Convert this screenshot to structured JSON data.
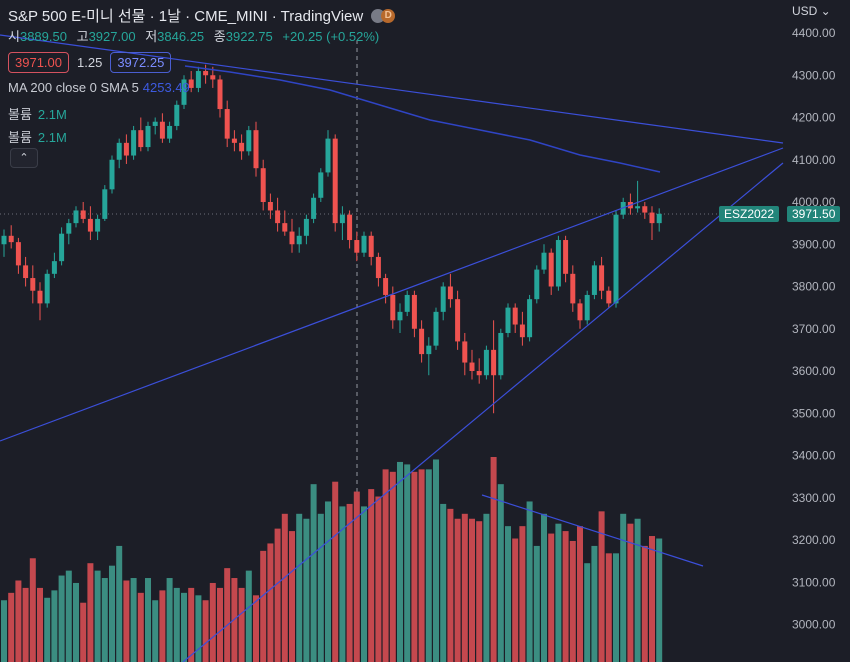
{
  "header": {
    "title": "S&P 500 E-미니 선물 · 1날 · CME_MINI · TradingView",
    "status_dot": "D",
    "ohlc": {
      "open_label": "시",
      "open": "3889.50",
      "high_label": "고",
      "high": "3927.00",
      "low_label": "저",
      "low": "3846.25",
      "close_label": "종",
      "close": "3922.75",
      "change": "+20.25 (+0.52%)"
    },
    "bid": "3971.00",
    "spread": "1.25",
    "ask": "3972.25",
    "ma_label": "MA 200 close 0 SMA 5",
    "ma_value": "4253.49",
    "volume_rows": [
      {
        "label": "볼륨",
        "value": "2.1M"
      },
      {
        "label": "볼륨",
        "value": "2.1M"
      }
    ],
    "collapse_icon": "chevron-up-icon"
  },
  "price_axis": {
    "currency": "USD",
    "symbol_tag": "ESZ2022",
    "last_price_tag": "3971.50"
  },
  "colors": {
    "background": "#1c1e27",
    "up": "#26a69a",
    "down": "#ef5350",
    "volume_up": "#3b8d81",
    "volume_down": "#c4484e",
    "trendline": "#3b4fd9",
    "ma": "#2f44c4",
    "tag": "#22857a"
  },
  "chart_data": {
    "type": "candlestick",
    "yaxis": {
      "ticks": [
        "3000.00",
        "3100.00",
        "3200.00",
        "3300.00",
        "3400.00",
        "3500.00",
        "3600.00",
        "3700.00",
        "3800.00",
        "3900.00",
        "4000.00",
        "4100.00",
        "4200.00",
        "4300.00",
        "4400.00"
      ],
      "range": [
        2920,
        4430
      ]
    },
    "last_price": 3971.5,
    "candles": [
      [
        3900,
        3935,
        3870,
        3920
      ],
      [
        3920,
        3945,
        3890,
        3905
      ],
      [
        3905,
        3915,
        3830,
        3850
      ],
      [
        3850,
        3870,
        3800,
        3820
      ],
      [
        3820,
        3850,
        3760,
        3790
      ],
      [
        3790,
        3810,
        3720,
        3760
      ],
      [
        3760,
        3840,
        3750,
        3830
      ],
      [
        3830,
        3880,
        3820,
        3860
      ],
      [
        3860,
        3940,
        3850,
        3925
      ],
      [
        3925,
        3960,
        3900,
        3950
      ],
      [
        3950,
        3990,
        3940,
        3980
      ],
      [
        3980,
        4000,
        3950,
        3960
      ],
      [
        3960,
        3990,
        3910,
        3930
      ],
      [
        3930,
        3970,
        3910,
        3960
      ],
      [
        3960,
        4040,
        3955,
        4030
      ],
      [
        4030,
        4110,
        4020,
        4100
      ],
      [
        4100,
        4150,
        4080,
        4140
      ],
      [
        4140,
        4160,
        4090,
        4110
      ],
      [
        4110,
        4180,
        4100,
        4170
      ],
      [
        4170,
        4200,
        4120,
        4130
      ],
      [
        4130,
        4190,
        4120,
        4180
      ],
      [
        4180,
        4200,
        4160,
        4190
      ],
      [
        4190,
        4210,
        4140,
        4150
      ],
      [
        4150,
        4190,
        4140,
        4180
      ],
      [
        4180,
        4240,
        4170,
        4230
      ],
      [
        4230,
        4300,
        4220,
        4290
      ],
      [
        4290,
        4310,
        4260,
        4270
      ],
      [
        4270,
        4320,
        4260,
        4310
      ],
      [
        4310,
        4325,
        4280,
        4300
      ],
      [
        4300,
        4320,
        4270,
        4290
      ],
      [
        4290,
        4300,
        4200,
        4220
      ],
      [
        4220,
        4240,
        4130,
        4150
      ],
      [
        4150,
        4170,
        4120,
        4140
      ],
      [
        4140,
        4160,
        4100,
        4120
      ],
      [
        4120,
        4180,
        4110,
        4170
      ],
      [
        4170,
        4190,
        4060,
        4080
      ],
      [
        4080,
        4100,
        3980,
        4000
      ],
      [
        4000,
        4020,
        3960,
        3980
      ],
      [
        3980,
        4010,
        3930,
        3950
      ],
      [
        3950,
        3980,
        3920,
        3930
      ],
      [
        3930,
        3960,
        3880,
        3900
      ],
      [
        3900,
        3940,
        3880,
        3920
      ],
      [
        3920,
        3970,
        3900,
        3960
      ],
      [
        3960,
        4020,
        3950,
        4010
      ],
      [
        4010,
        4080,
        4000,
        4070
      ],
      [
        4070,
        4170,
        4060,
        4150
      ],
      [
        4150,
        4160,
        3930,
        3950
      ],
      [
        3950,
        3990,
        3910,
        3970
      ],
      [
        3970,
        3980,
        3890,
        3910
      ],
      [
        3910,
        3930,
        3860,
        3880
      ],
      [
        3880,
        3930,
        3870,
        3920
      ],
      [
        3920,
        3930,
        3850,
        3870
      ],
      [
        3870,
        3880,
        3800,
        3820
      ],
      [
        3820,
        3830,
        3760,
        3780
      ],
      [
        3780,
        3800,
        3700,
        3720
      ],
      [
        3720,
        3760,
        3690,
        3740
      ],
      [
        3740,
        3790,
        3730,
        3780
      ],
      [
        3780,
        3790,
        3680,
        3700
      ],
      [
        3700,
        3720,
        3620,
        3640
      ],
      [
        3640,
        3680,
        3590,
        3660
      ],
      [
        3660,
        3750,
        3650,
        3740
      ],
      [
        3740,
        3810,
        3720,
        3800
      ],
      [
        3800,
        3830,
        3750,
        3770
      ],
      [
        3770,
        3790,
        3650,
        3670
      ],
      [
        3670,
        3690,
        3590,
        3620
      ],
      [
        3620,
        3650,
        3580,
        3600
      ],
      [
        3600,
        3630,
        3570,
        3590
      ],
      [
        3590,
        3660,
        3580,
        3650
      ],
      [
        3650,
        3720,
        3500,
        3590
      ],
      [
        3590,
        3700,
        3580,
        3690
      ],
      [
        3690,
        3760,
        3680,
        3750
      ],
      [
        3750,
        3760,
        3690,
        3710
      ],
      [
        3710,
        3740,
        3660,
        3680
      ],
      [
        3680,
        3780,
        3670,
        3770
      ],
      [
        3770,
        3850,
        3760,
        3840
      ],
      [
        3840,
        3900,
        3830,
        3880
      ],
      [
        3880,
        3890,
        3780,
        3800
      ],
      [
        3800,
        3920,
        3790,
        3910
      ],
      [
        3910,
        3920,
        3810,
        3830
      ],
      [
        3830,
        3850,
        3740,
        3760
      ],
      [
        3760,
        3770,
        3700,
        3720
      ],
      [
        3720,
        3790,
        3710,
        3780
      ],
      [
        3780,
        3860,
        3770,
        3850
      ],
      [
        3850,
        3870,
        3770,
        3790
      ],
      [
        3790,
        3800,
        3750,
        3760
      ],
      [
        3760,
        3980,
        3750,
        3970
      ],
      [
        3970,
        4010,
        3960,
        4000
      ],
      [
        4000,
        4020,
        3970,
        3985
      ],
      [
        3985,
        4050,
        3975,
        3990
      ],
      [
        3990,
        4000,
        3960,
        3975
      ],
      [
        3975,
        3990,
        3910,
        3950
      ],
      [
        3950,
        3985,
        3930,
        3972
      ]
    ],
    "volume_note": "volume histogram (bottom pane), values relative",
    "volume": [
      0.25,
      0.28,
      0.33,
      0.3,
      0.42,
      0.3,
      0.26,
      0.29,
      0.35,
      0.37,
      0.32,
      0.24,
      0.4,
      0.37,
      0.34,
      0.39,
      0.47,
      0.33,
      0.34,
      0.28,
      0.34,
      0.25,
      0.29,
      0.34,
      0.3,
      0.28,
      0.3,
      0.27,
      0.25,
      0.32,
      0.3,
      0.38,
      0.34,
      0.3,
      0.37,
      0.27,
      0.45,
      0.48,
      0.54,
      0.6,
      0.53,
      0.6,
      0.58,
      0.72,
      0.6,
      0.65,
      0.73,
      0.63,
      0.64,
      0.69,
      0.63,
      0.7,
      0.67,
      0.78,
      0.77,
      0.81,
      0.8,
      0.77,
      0.78,
      0.78,
      0.82,
      0.64,
      0.62,
      0.58,
      0.6,
      0.58,
      0.57,
      0.6,
      0.83,
      0.72,
      0.55,
      0.5,
      0.55,
      0.65,
      0.47,
      0.6,
      0.52,
      0.56,
      0.53,
      0.49,
      0.55,
      0.4,
      0.47,
      0.61,
      0.44,
      0.44,
      0.6,
      0.56,
      0.58,
      0.47,
      0.51,
      0.5
    ]
  }
}
